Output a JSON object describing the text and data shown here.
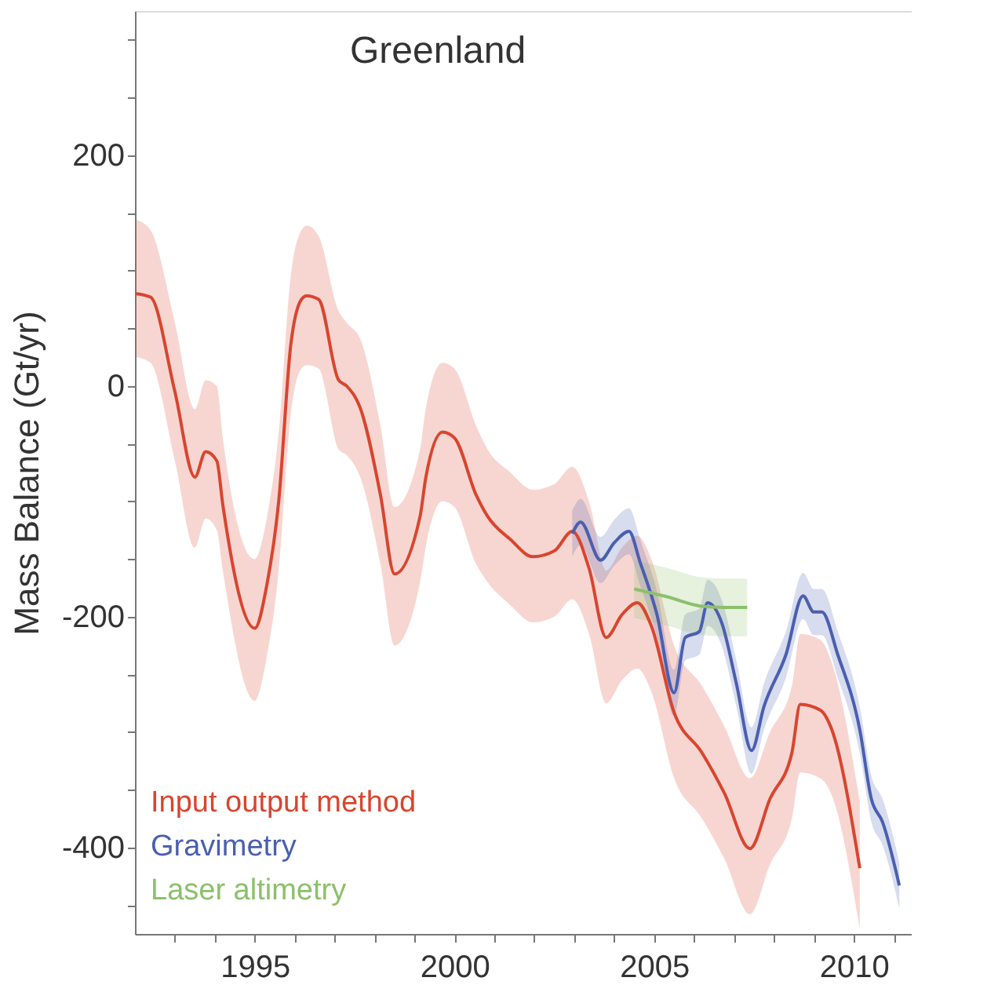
{
  "chart_data": {
    "type": "line",
    "title": "Greenland",
    "ylabel": "Mass Balance (Gt/yr)",
    "xlim": [
      1992,
      2011.45
    ],
    "ylim": [
      -475,
      325
    ],
    "xticks": [
      {
        "value": 1993,
        "label": null
      },
      {
        "value": 1994,
        "label": null
      },
      1995,
      {
        "value": 1996,
        "label": null
      },
      {
        "value": 1997,
        "label": null
      },
      {
        "value": 1998,
        "label": null
      },
      {
        "value": 1999,
        "label": null
      },
      2000,
      {
        "value": 2001,
        "label": null
      },
      {
        "value": 2002,
        "label": null
      },
      {
        "value": 2003,
        "label": null
      },
      {
        "value": 2004,
        "label": null
      },
      2005,
      {
        "value": 2006,
        "label": null
      },
      {
        "value": 2007,
        "label": null
      },
      {
        "value": 2008,
        "label": null
      },
      {
        "value": 2009,
        "label": null
      },
      2010,
      {
        "value": 2011,
        "label": null
      }
    ],
    "yticks": [
      {
        "value": -450,
        "label": null
      },
      -400,
      {
        "value": -350,
        "label": null
      },
      {
        "value": -300,
        "label": null
      },
      {
        "value": -250,
        "label": null
      },
      -200,
      {
        "value": -150,
        "label": null
      },
      {
        "value": -100,
        "label": null
      },
      {
        "value": -50,
        "label": null
      },
      0,
      {
        "value": 50,
        "label": null
      },
      {
        "value": 100,
        "label": null
      },
      {
        "value": 150,
        "label": null
      },
      200,
      {
        "value": 250,
        "label": null
      },
      {
        "value": 300,
        "label": null
      }
    ],
    "grid": false,
    "legend": "bottom left",
    "line_style": "solid",
    "marker": "none",
    "series": [
      {
        "name": "Input output method",
        "color": "#d9452f",
        "x": [
          1992.03,
          1992.39,
          1993.0,
          1993.5,
          1993.77,
          1994.05,
          1994.2,
          1995.0,
          1995.3,
          1995.6,
          1995.9,
          1996.17,
          1996.3,
          1996.6,
          1997.1,
          1997.3,
          1997.65,
          1998.15,
          1998.5,
          1999.14,
          1999.28,
          1999.7,
          2000.0,
          2000.55,
          2000.83,
          2001.4,
          2001.96,
          2002.5,
          2002.95,
          2003.37,
          2003.8,
          2004.2,
          2004.58,
          2004.93,
          2005.5,
          2006.2,
          2006.76,
          2007.4,
          2007.9,
          2008.45,
          2008.66,
          2009.16,
          2009.45,
          2010.15
        ],
        "values": [
          80,
          77,
          -5,
          -79,
          -57,
          -65,
          -103,
          -210,
          -173,
          -100,
          35,
          75,
          78,
          75,
          5,
          0,
          -20,
          -95,
          -163,
          -113,
          -80,
          -40,
          -45,
          -95,
          -113,
          -133,
          -148,
          -143,
          -126,
          -158,
          -218,
          -198,
          -188,
          -208,
          -283,
          -318,
          -353,
          -401,
          -358,
          -318,
          -276,
          -281,
          -298,
          -418
        ],
        "upper": [
          144,
          135,
          55,
          -20,
          5,
          0,
          -45,
          -150,
          -115,
          -40,
          95,
          135,
          139,
          130,
          65,
          55,
          40,
          -35,
          -105,
          -55,
          -20,
          20,
          15,
          -35,
          -55,
          -75,
          -90,
          -85,
          -70,
          -100,
          -160,
          -140,
          -130,
          -150,
          -225,
          -260,
          -295,
          -340,
          -300,
          -260,
          -215,
          -220,
          -240,
          -360
        ],
        "lower": [
          25,
          20,
          -65,
          -140,
          -115,
          -125,
          -160,
          -273,
          -235,
          -160,
          -25,
          15,
          18,
          15,
          -55,
          -60,
          -80,
          -155,
          -225,
          -170,
          -140,
          -100,
          -105,
          -155,
          -170,
          -190,
          -205,
          -200,
          -185,
          -215,
          -275,
          -255,
          -245,
          -265,
          -340,
          -375,
          -410,
          -458,
          -415,
          -375,
          -335,
          -340,
          -355,
          -470
        ]
      },
      {
        "name": "Gravimetry",
        "color": "#4a5fb0",
        "x": [
          2002.95,
          2003.16,
          2003.66,
          2004.0,
          2004.37,
          2004.65,
          2005.07,
          2005.5,
          2005.78,
          2006.13,
          2006.34,
          2006.7,
          2007.06,
          2007.44,
          2007.75,
          2008.3,
          2008.73,
          2009.0,
          2009.2,
          2009.6,
          2010.15,
          2010.44,
          2010.72,
          2011.14
        ],
        "values": [
          -128,
          -118,
          -151,
          -136,
          -126,
          -153,
          -198,
          -266,
          -218,
          -213,
          -188,
          -206,
          -258,
          -316,
          -278,
          -233,
          -182,
          -196,
          -196,
          -233,
          -298,
          -358,
          -378,
          -433
        ],
        "upper": [
          -108,
          -98,
          -131,
          -116,
          -106,
          -133,
          -178,
          -246,
          -198,
          -193,
          -168,
          -186,
          -238,
          -296,
          -258,
          -213,
          -162,
          -176,
          -176,
          -213,
          -278,
          -338,
          -358,
          -413
        ],
        "lower": [
          -148,
          -138,
          -171,
          -156,
          -146,
          -173,
          -218,
          -286,
          -238,
          -233,
          -208,
          -226,
          -278,
          -336,
          -298,
          -253,
          -202,
          -216,
          -216,
          -253,
          -318,
          -378,
          -398,
          -453
        ]
      },
      {
        "name": "Laser altimetry",
        "color": "#8cc06b",
        "x": [
          2004.5,
          2005.35,
          2006.2,
          2006.76,
          2007.33
        ],
        "values": [
          -176,
          -183,
          -191,
          -192,
          -192
        ],
        "upper": [
          -151,
          -158,
          -166,
          -167,
          -167
        ],
        "lower": [
          -201,
          -208,
          -216,
          -217,
          -217
        ]
      }
    ]
  }
}
